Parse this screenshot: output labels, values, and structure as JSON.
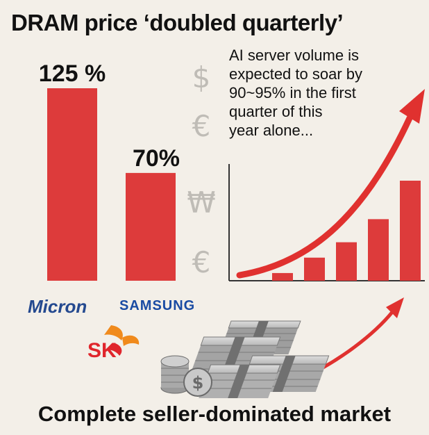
{
  "title": "DRAM price ‘doubled quarterly’",
  "footer": "Complete seller-dominated market",
  "annotation": [
    "AI server volume is",
    "expected to soar by",
    "90~95% in the first",
    "quarter of this",
    "year alone..."
  ],
  "currency_symbols": [
    "$",
    "€",
    "₩",
    "€"
  ],
  "logos": {
    "micron": "Micron",
    "samsung": "SAMSUNG",
    "sk": "SK"
  },
  "colors": {
    "bar": "#dd3b3b",
    "arrow": "#e0312f",
    "background": "#f3efe8"
  },
  "chart_data": [
    {
      "type": "bar",
      "categories": [
        "",
        ""
      ],
      "values": [
        125,
        70
      ],
      "data_labels": [
        "125 %",
        "70%"
      ],
      "unit": "%"
    },
    {
      "type": "bar",
      "categories": [
        "",
        "",
        "",
        "",
        ""
      ],
      "values": [
        1,
        3,
        5,
        8,
        13
      ],
      "trend_arrow": true,
      "axis_lines": true
    }
  ]
}
